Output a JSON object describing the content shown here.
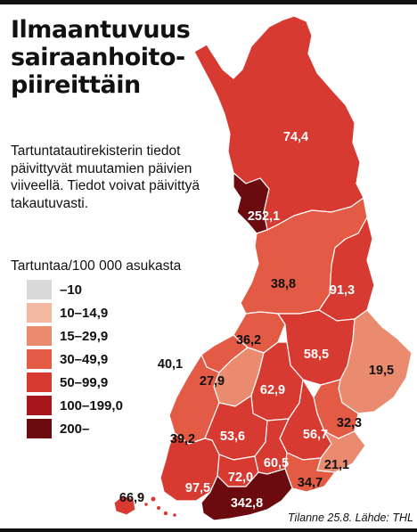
{
  "title": "Ilmaantuvuus\nsairaanhoito-\npiireittäin",
  "description": "Tartuntatautirekisterin tiedot päivittyvät muutamien päivien viiveellä. Tiedot voivat päivittyä takautuvasti.",
  "legend": {
    "title": "Tartuntaa/100 000 asukasta",
    "items": [
      {
        "label": "–10",
        "color": "#d9d9d9"
      },
      {
        "label": "10–14,9",
        "color": "#f2b8a2"
      },
      {
        "label": "15–29,9",
        "color": "#ea8b6f"
      },
      {
        "label": "30–49,9",
        "color": "#e35b45"
      },
      {
        "label": "50–99,9",
        "color": "#d63a30"
      },
      {
        "label": "100–199,0",
        "color": "#a8171d"
      },
      {
        "label": "200–",
        "color": "#6b0b0f"
      }
    ]
  },
  "regions": [
    {
      "value": "74,4",
      "value_num": 74.4,
      "color": "#d63a30"
    },
    {
      "value": "252,1",
      "value_num": 252.1,
      "color": "#6b0b0f"
    },
    {
      "value": "38,8",
      "value_num": 38.8,
      "color": "#e35b45"
    },
    {
      "value": "91,3",
      "value_num": 91.3,
      "color": "#d63a30"
    },
    {
      "value": "36,2",
      "value_num": 36.2,
      "color": "#e35b45"
    },
    {
      "value": "58,5",
      "value_num": 58.5,
      "color": "#d63a30"
    },
    {
      "value": "40,1",
      "value_num": 40.1,
      "color": "#e35b45"
    },
    {
      "value": "27,9",
      "value_num": 27.9,
      "color": "#ea8b6f"
    },
    {
      "value": "62,9",
      "value_num": 62.9,
      "color": "#d63a30"
    },
    {
      "value": "19,5",
      "value_num": 19.5,
      "color": "#ea8b6f"
    },
    {
      "value": "32,3",
      "value_num": 32.3,
      "color": "#e35b45"
    },
    {
      "value": "39,2",
      "value_num": 39.2,
      "color": "#e35b45"
    },
    {
      "value": "53,6",
      "value_num": 53.6,
      "color": "#d63a30"
    },
    {
      "value": "56,7",
      "value_num": 56.7,
      "color": "#d63a30"
    },
    {
      "value": "72,0",
      "value_num": 72.0,
      "color": "#d63a30"
    },
    {
      "value": "60,5",
      "value_num": 60.5,
      "color": "#d63a30"
    },
    {
      "value": "21,1",
      "value_num": 21.1,
      "color": "#ea8b6f"
    },
    {
      "value": "34,7",
      "value_num": 34.7,
      "color": "#e35b45"
    },
    {
      "value": "97,5",
      "value_num": 97.5,
      "color": "#d63a30"
    },
    {
      "value": "342,8",
      "value_num": 342.8,
      "color": "#6b0b0f"
    },
    {
      "value": "66,9",
      "value_num": 66.9,
      "color": "#d63a30"
    }
  ],
  "source": "Tilanne 25.8. Lähde: THL"
}
